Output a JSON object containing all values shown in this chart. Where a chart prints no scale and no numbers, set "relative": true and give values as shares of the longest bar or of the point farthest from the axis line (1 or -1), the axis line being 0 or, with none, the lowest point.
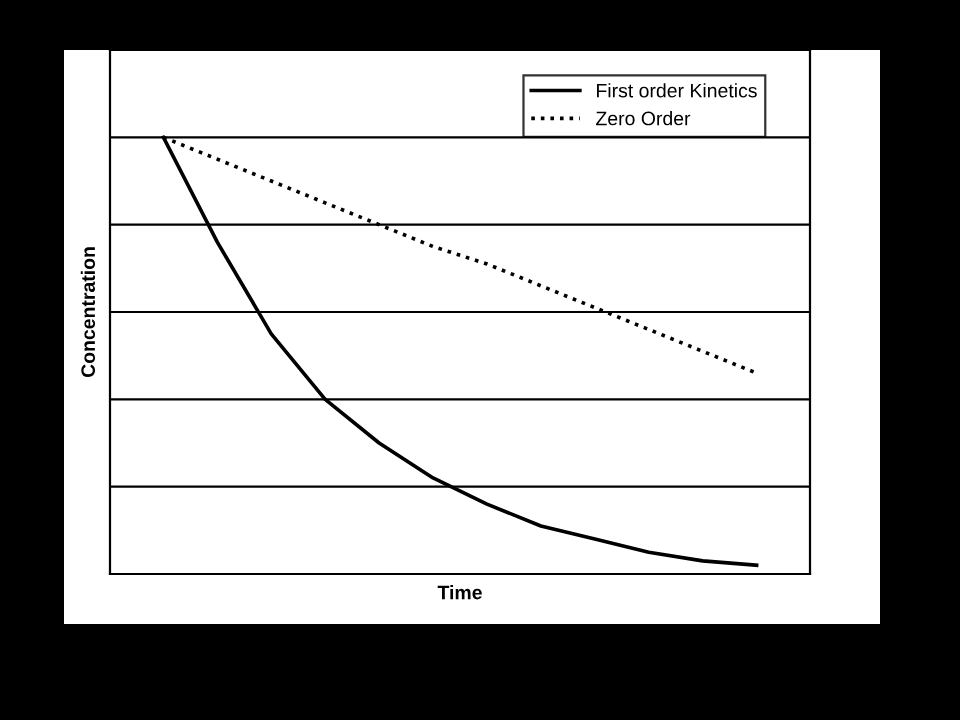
{
  "chart_data": {
    "type": "line",
    "relative": true,
    "xlabel": "Time",
    "ylabel": "Concentration",
    "categories": [
      null,
      null,
      null,
      null,
      null,
      null,
      null,
      null,
      null,
      null,
      null,
      null
    ],
    "series": [
      {
        "name": "First order Kinetics",
        "color": "#000000",
        "line_style": "solid",
        "values": [
          1,
          0.76,
          0.55,
          0.4,
          0.3,
          0.22,
          0.16,
          0.11,
          0.08,
          0.05,
          0.03,
          0.02
        ]
      },
      {
        "name": "Zero Order",
        "color": "#000000",
        "line_style": "dotted",
        "values": [
          1,
          0.95,
          0.9,
          0.85,
          0.8,
          0.75,
          0.71,
          0.66,
          0.61,
          0.56,
          0.51,
          0.46
        ]
      }
    ],
    "grid": "y",
    "legend": "top right",
    "tick_labels": false
  }
}
